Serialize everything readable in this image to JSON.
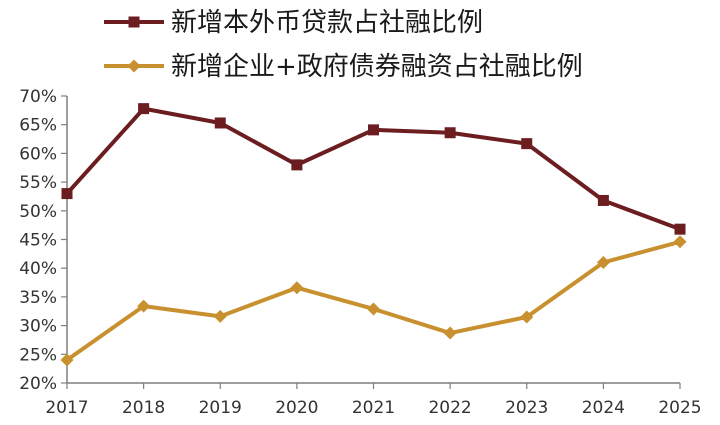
{
  "chart_data": {
    "type": "line",
    "title": "",
    "xlabel": "",
    "ylabel": "",
    "x": [
      "2017",
      "2018",
      "2019",
      "2020",
      "2021",
      "2022",
      "2023",
      "2024",
      "2025"
    ],
    "ylim": [
      20,
      70
    ],
    "y_ticks": [
      20,
      25,
      30,
      35,
      40,
      45,
      50,
      55,
      60,
      65,
      70
    ],
    "y_tick_suffix": "%",
    "grid": false,
    "legend_position": "top",
    "series": [
      {
        "name": "新增本外币贷款占社融比例",
        "color": "#6b1d20",
        "marker": "square",
        "values": [
          53.0,
          67.8,
          65.3,
          58.0,
          64.1,
          63.6,
          61.7,
          51.8,
          46.8
        ]
      },
      {
        "name": "新增企业+政府债券融资占社融比例",
        "color": "#c8902e",
        "marker": "diamond",
        "values": [
          24.0,
          33.4,
          31.6,
          36.6,
          32.9,
          28.7,
          31.5,
          41.0,
          44.6
        ]
      }
    ]
  }
}
